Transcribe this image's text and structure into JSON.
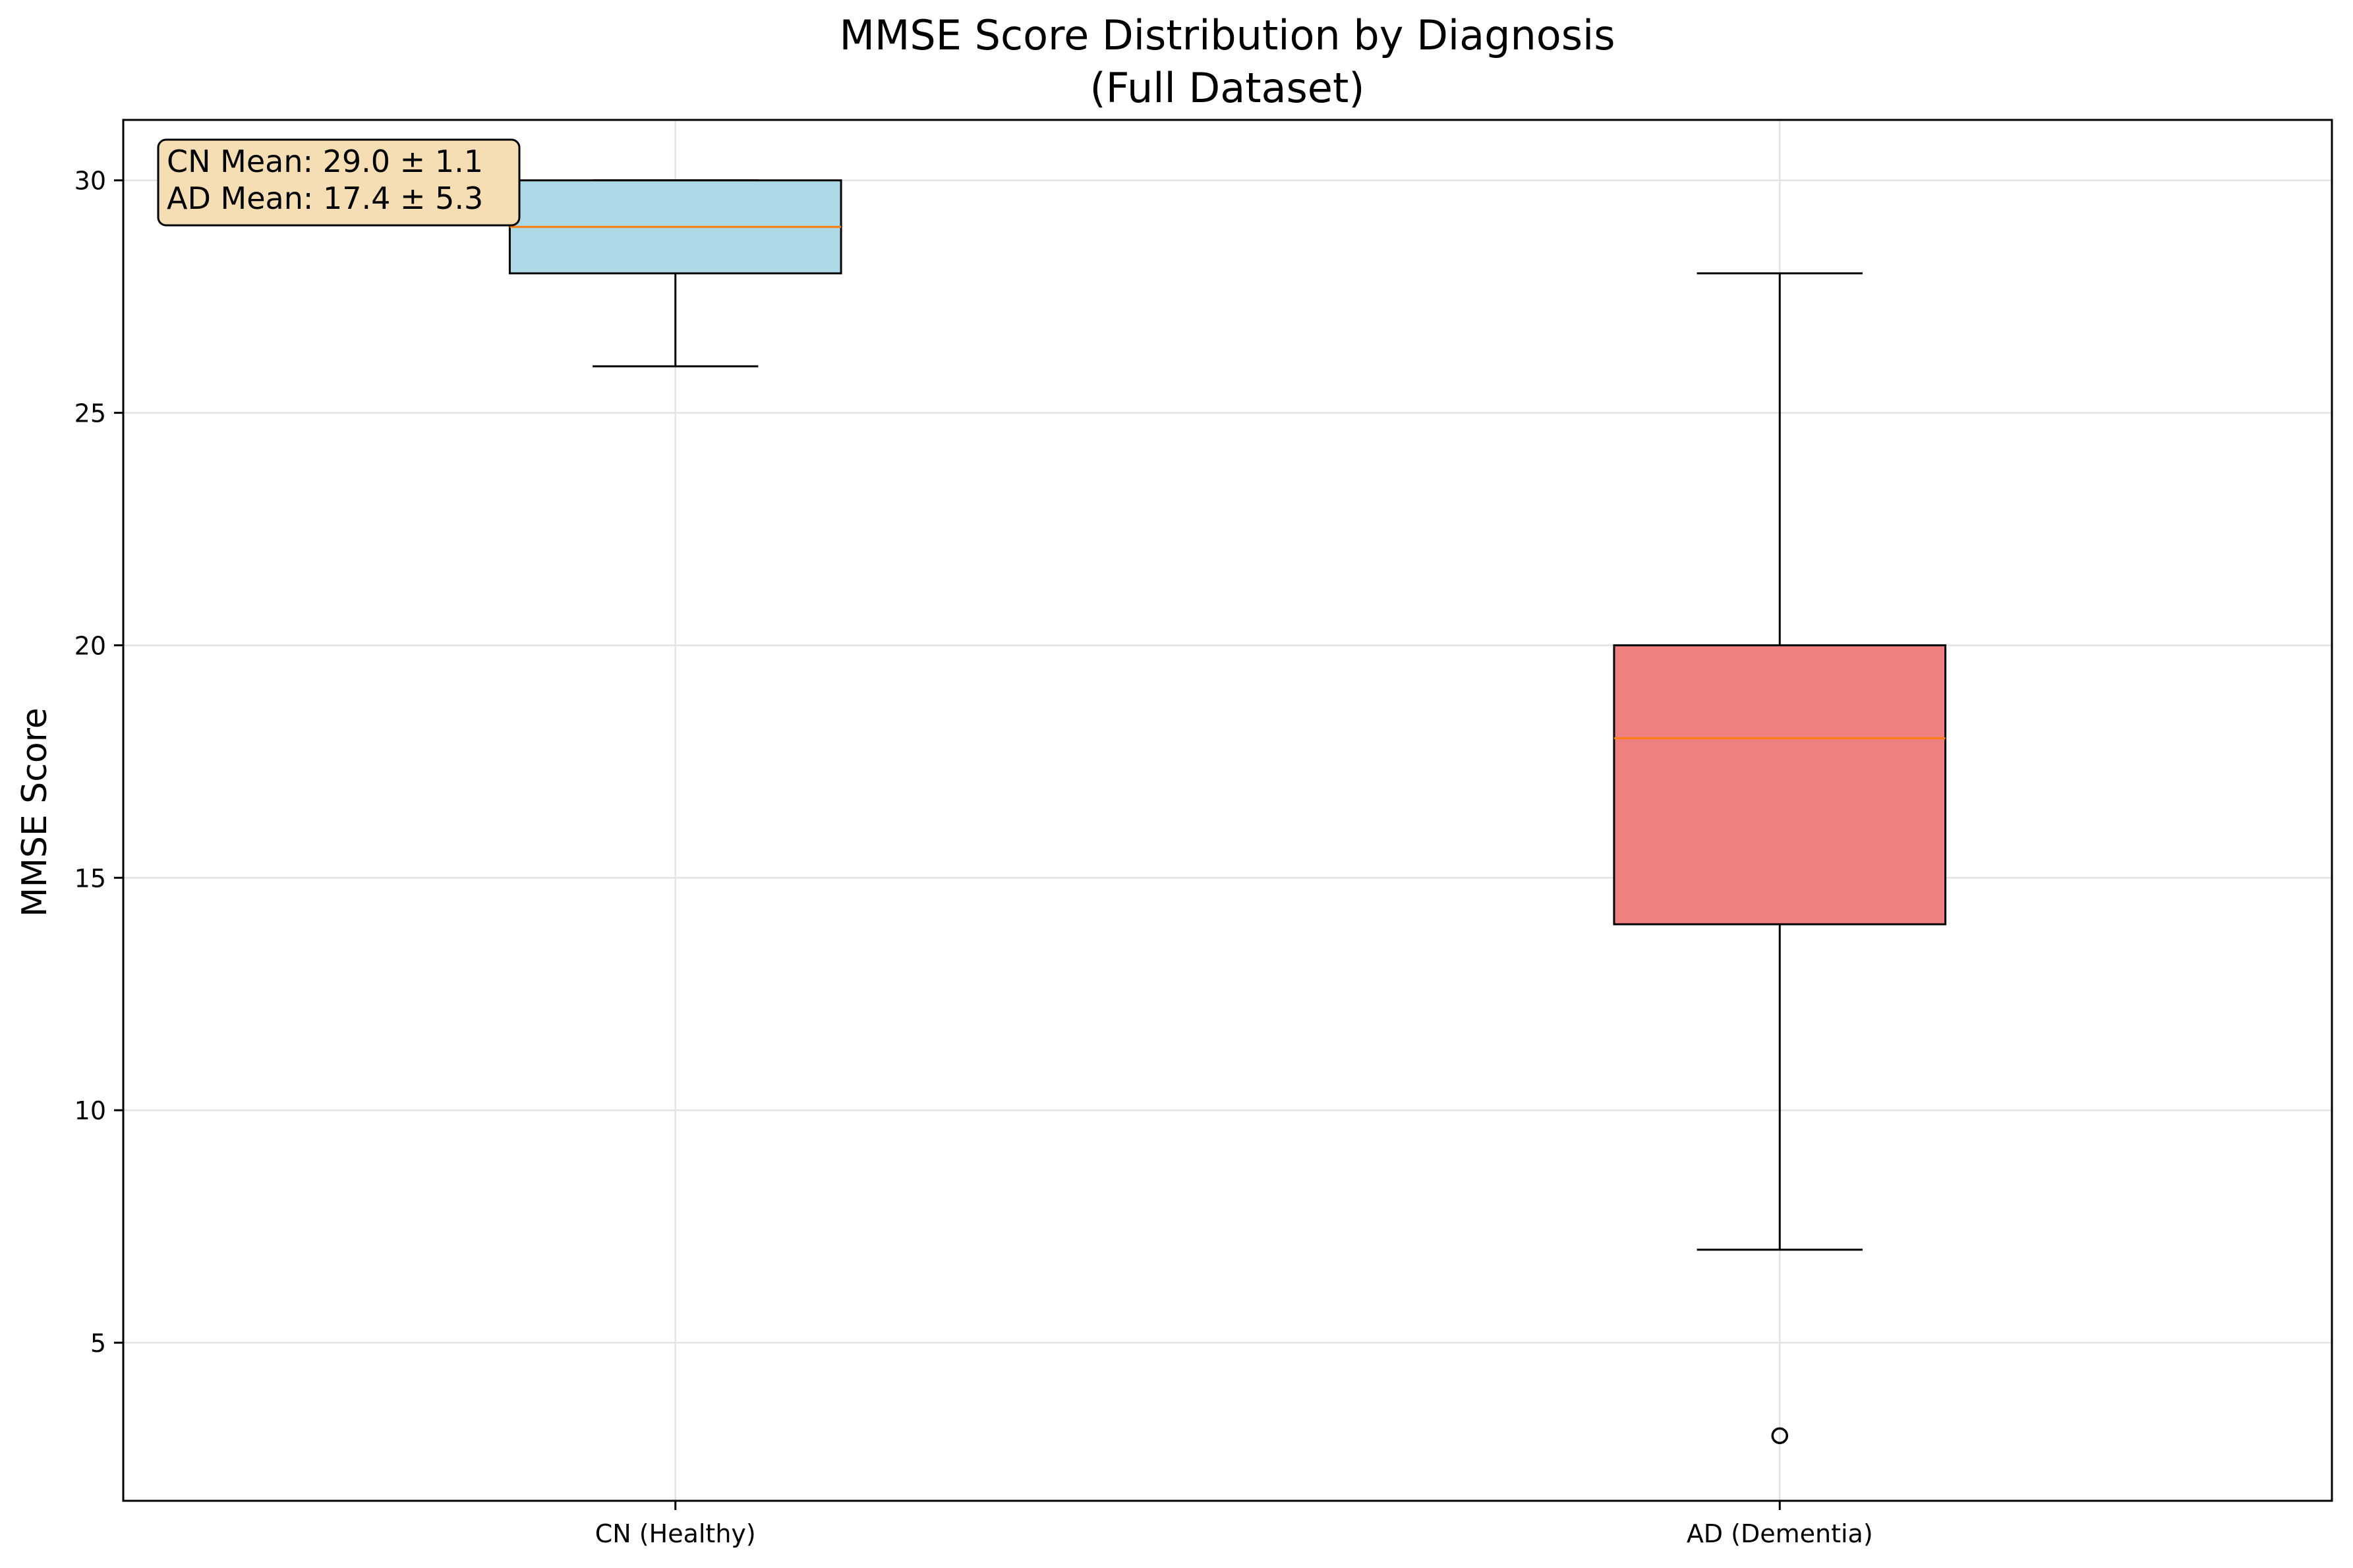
{
  "chart_data": {
    "type": "box",
    "title": "MMSE Score Distribution by Diagnosis",
    "subtitle": "(Full Dataset)",
    "xlabel": "",
    "ylabel": "MMSE Score",
    "ylim": [
      1.6,
      31.3
    ],
    "yticks": [
      5,
      10,
      15,
      20,
      25,
      30
    ],
    "grid": true,
    "categories": [
      "CN (Healthy)",
      "AD (Dementia)"
    ],
    "boxes": [
      {
        "category": "CN (Healthy)",
        "whisker_low": 26,
        "q1": 28,
        "median": 29,
        "q3": 30,
        "whisker_high": 30,
        "outliers": [],
        "color": "#add8e6"
      },
      {
        "category": "AD (Dementia)",
        "whisker_low": 7,
        "q1": 14,
        "median": 18,
        "q3": 20,
        "whisker_high": 28,
        "outliers": [
          3
        ],
        "color": "#f08080"
      }
    ],
    "median_color": "#ff7f0e",
    "annotation": {
      "lines": [
        "CN Mean: 29.0 ± 1.1",
        "AD Mean: 17.4 ± 5.3"
      ],
      "position": "top-left",
      "background": "#f5deb3"
    }
  }
}
